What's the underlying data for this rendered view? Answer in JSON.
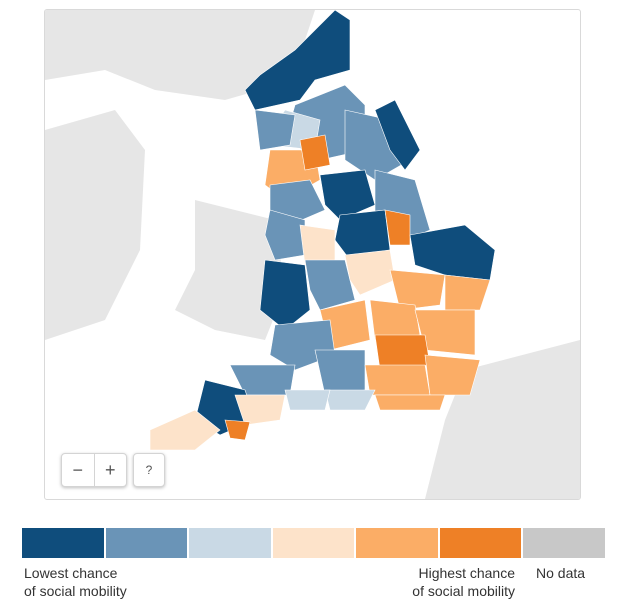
{
  "map": {
    "controls": {
      "zoom_out_label": "−",
      "zoom_in_label": "+",
      "help_label": "?"
    }
  },
  "legend": {
    "swatches": [
      {
        "key": "lowest",
        "color": "#0f4d7c"
      },
      {
        "key": "low",
        "color": "#6a94b7"
      },
      {
        "key": "below_mid",
        "color": "#c9d9e5"
      },
      {
        "key": "above_mid",
        "color": "#fde3ca"
      },
      {
        "key": "high",
        "color": "#fbad66"
      },
      {
        "key": "highest",
        "color": "#ee8026"
      },
      {
        "key": "no_data",
        "color": "#c8c8c8"
      }
    ],
    "low_label_line1": "Lowest chance",
    "low_label_line2": "of social mobility",
    "high_label_line1": "Highest chance",
    "high_label_line2": "of social mobility",
    "no_data_label": "No data"
  },
  "colors": {
    "land": "#e6e6e6",
    "sea": "#ffffff",
    "border": "#ffffff"
  }
}
